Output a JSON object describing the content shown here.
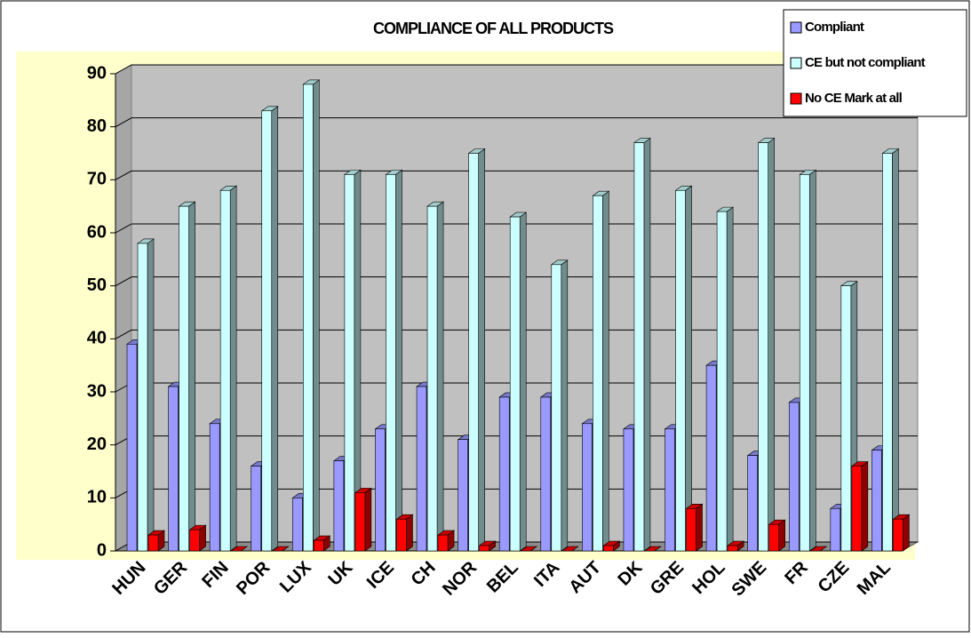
{
  "chart_data": {
    "type": "bar3d",
    "title": "COMPLIANCE OF ALL PRODUCTS",
    "categories": [
      "HUN",
      "GER",
      "FIN",
      "POR",
      "LUX",
      "UK",
      "ICE",
      "CH",
      "NOR",
      "BEL",
      "ITA",
      "AUT",
      "DK",
      "GRE",
      "HOL",
      "SWE",
      "FR",
      "CZE",
      "MAL"
    ],
    "series": [
      {
        "name": "Compliant",
        "color": "#9999ff",
        "values": [
          39,
          31,
          24,
          16,
          10,
          17,
          23,
          31,
          21,
          29,
          29,
          24,
          23,
          23,
          35,
          18,
          28,
          8,
          19
        ]
      },
      {
        "name": "CE but not compliant",
        "color": "#ccffff",
        "values": [
          58,
          65,
          68,
          83,
          88,
          71,
          71,
          65,
          75,
          63,
          54,
          67,
          77,
          68,
          64,
          77,
          71,
          50,
          75
        ]
      },
      {
        "name": "No CE Mark at all",
        "color": "#ff0000",
        "values": [
          3,
          4,
          0,
          0,
          2,
          11,
          6,
          3,
          1,
          0,
          0,
          1,
          0,
          8,
          1,
          5,
          0,
          16,
          6
        ]
      }
    ],
    "ylim": [
      0,
      90
    ],
    "yticks": [
      0,
      10,
      20,
      30,
      40,
      50,
      60,
      70,
      80,
      90
    ],
    "grid": true,
    "legend": "top-right"
  }
}
